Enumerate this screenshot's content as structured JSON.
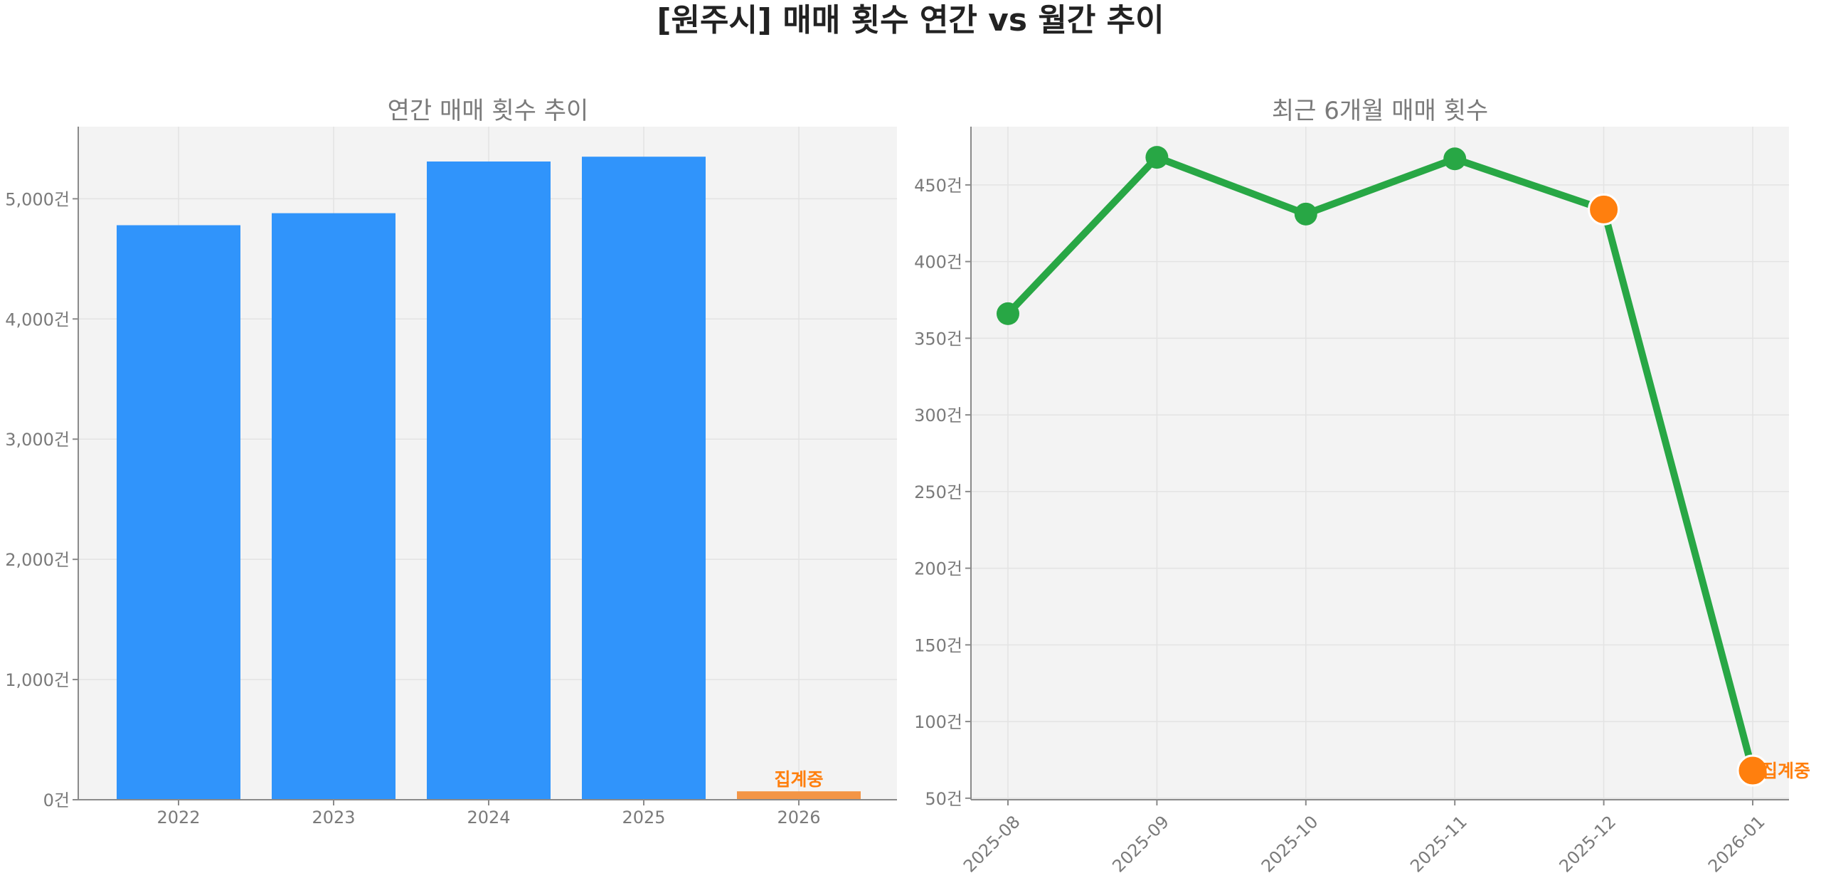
{
  "title": "[원주시] 매매 횟수 연간 vs 월간 추이",
  "chart_data": [
    {
      "type": "bar",
      "title": "연간 매매 횟수 추이",
      "categories": [
        "2022",
        "2023",
        "2024",
        "2025",
        "2026"
      ],
      "values": [
        4780,
        4880,
        5310,
        5350,
        70
      ],
      "ylim": [
        0,
        5600
      ],
      "yticks": [
        0,
        1000,
        2000,
        3000,
        4000,
        5000
      ],
      "ytick_labels": [
        "0건",
        "1,000건",
        "2,000건",
        "3,000건",
        "4,000건",
        "5,000건"
      ],
      "bar_colors": [
        "#3094fb",
        "#3094fb",
        "#3094fb",
        "#3094fb",
        "#f39546"
      ],
      "annotation": {
        "category": "2026",
        "text": "집계중"
      },
      "grid": true
    },
    {
      "type": "line",
      "title": "최근 6개월 매매 횟수",
      "x": [
        "2025-08",
        "2025-09",
        "2025-10",
        "2025-11",
        "2025-12",
        "2026-01"
      ],
      "values": [
        366,
        468,
        431,
        467,
        434,
        68
      ],
      "ylim": [
        49,
        488
      ],
      "yticks": [
        50,
        100,
        150,
        200,
        250,
        300,
        350,
        400,
        450
      ],
      "ytick_labels": [
        "50건",
        "100건",
        "150건",
        "200건",
        "250건",
        "300건",
        "350건",
        "400건",
        "450건"
      ],
      "line_color": "#28a745",
      "highlight_color": "#ff7f0e",
      "highlight_points": [
        "2025-12",
        "2026-01"
      ],
      "annotation": {
        "x": "2026-01",
        "text": "집계중"
      },
      "grid": true
    }
  ]
}
